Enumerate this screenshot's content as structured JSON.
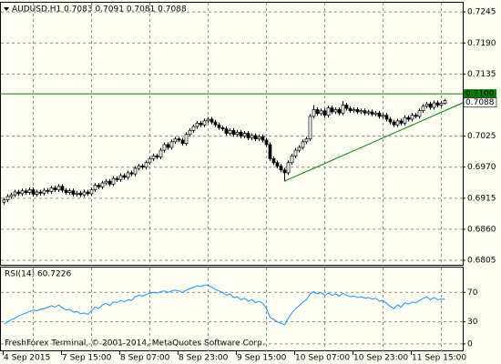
{
  "chart_data": [
    {
      "type": "candlestick",
      "title": "AUDUSD,H1  0.7083 0.7091 0.7081 0.7088",
      "categories": [
        "4 Sep 2015",
        null,
        null,
        null,
        null,
        null,
        null,
        null,
        null,
        null,
        null,
        null,
        null,
        null,
        null,
        null,
        "7 Sep 15:00",
        null,
        null,
        null,
        null,
        null,
        null,
        null,
        null,
        null,
        null,
        null,
        null,
        null,
        null,
        null,
        "8 Sep 07:00",
        null,
        null,
        null,
        null,
        null,
        null,
        null,
        null,
        null,
        null,
        null,
        null,
        null,
        null,
        null,
        "8 Sep 23:00",
        null,
        null,
        null,
        null,
        null,
        null,
        null,
        null,
        null,
        null,
        null,
        null,
        null,
        null,
        null,
        "9 Sep 15:00",
        null,
        null,
        null,
        null,
        null,
        null,
        null,
        null,
        null,
        null,
        null,
        null,
        null,
        null,
        null,
        "10 Sep 07:00",
        null,
        null,
        null,
        null,
        null,
        null,
        null,
        null,
        null,
        null,
        null,
        null,
        null,
        null,
        null,
        "10 Sep 23:00",
        null,
        null,
        null,
        null,
        null,
        null,
        null,
        null,
        null,
        null,
        null,
        null,
        null,
        null,
        null,
        "11 Sep 15:00",
        null,
        null,
        null,
        null,
        null,
        null,
        null,
        null,
        null
      ],
      "open": [
        0.6908,
        0.6912,
        0.6918,
        0.6921,
        0.6926,
        0.6923,
        0.6928,
        0.6925,
        0.693,
        0.6922,
        0.6926,
        0.6924,
        0.6929,
        0.6927,
        0.6933,
        0.693,
        0.6936,
        0.6929,
        0.6925,
        0.6928,
        0.6922,
        0.6924,
        0.6921,
        0.6926,
        0.6923,
        0.693,
        0.6938,
        0.6935,
        0.6942,
        0.6945,
        0.694,
        0.695,
        0.6948,
        0.6955,
        0.6952,
        0.696,
        0.6958,
        0.6968,
        0.6972,
        0.697,
        0.6978,
        0.6985,
        0.699,
        0.6988,
        0.7,
        0.701,
        0.7005,
        0.7015,
        0.702,
        0.7018,
        0.7012,
        0.7028,
        0.7035,
        0.7042,
        0.7048,
        0.7045,
        0.7052,
        0.7055,
        0.705,
        0.7045,
        0.704,
        0.7038,
        0.703,
        0.7035,
        0.7028,
        0.7032,
        0.7025,
        0.703,
        0.7022,
        0.7026,
        0.702,
        0.7024,
        0.7018,
        0.701,
        0.6985,
        0.6978,
        0.6972,
        0.6965,
        0.696,
        0.6978,
        0.699,
        0.7,
        0.7005,
        0.7015,
        0.702,
        0.706,
        0.7072,
        0.7065,
        0.707,
        0.7062,
        0.7075,
        0.7068,
        0.7072,
        0.7066,
        0.708,
        0.7074,
        0.707,
        0.7072,
        0.7068,
        0.707,
        0.7066,
        0.7068,
        0.7064,
        0.7066,
        0.706,
        0.7062,
        0.7055,
        0.705,
        0.7045,
        0.7052,
        0.7048,
        0.7058,
        0.7055,
        0.7062,
        0.706,
        0.707,
        0.7078,
        0.7082,
        0.7076,
        0.7084,
        0.708,
        0.7083
      ],
      "high": [
        0.6916,
        0.6922,
        0.6925,
        0.693,
        0.693,
        0.6932,
        0.6932,
        0.6934,
        0.6934,
        0.693,
        0.693,
        0.6933,
        0.6933,
        0.6937,
        0.6937,
        0.694,
        0.694,
        0.6933,
        0.6932,
        0.6932,
        0.6928,
        0.6928,
        0.693,
        0.693,
        0.6934,
        0.6942,
        0.6942,
        0.6946,
        0.6949,
        0.6949,
        0.6954,
        0.6954,
        0.6959,
        0.6959,
        0.6964,
        0.6964,
        0.6972,
        0.6976,
        0.6976,
        0.6982,
        0.6989,
        0.6994,
        0.6994,
        0.7004,
        0.7014,
        0.7014,
        0.7019,
        0.7024,
        0.7024,
        0.7022,
        0.7032,
        0.7039,
        0.7046,
        0.7052,
        0.7052,
        0.7056,
        0.7059,
        0.7059,
        0.7054,
        0.7049,
        0.7044,
        0.7042,
        0.7039,
        0.7039,
        0.7036,
        0.7036,
        0.7034,
        0.7034,
        0.703,
        0.703,
        0.7028,
        0.7028,
        0.7022,
        0.7014,
        0.6989,
        0.6982,
        0.6976,
        0.6969,
        0.6982,
        0.6994,
        0.7004,
        0.7009,
        0.7019,
        0.7024,
        0.7064,
        0.708,
        0.7076,
        0.7074,
        0.7074,
        0.7079,
        0.7079,
        0.7076,
        0.7076,
        0.7087,
        0.7084,
        0.7078,
        0.7076,
        0.7076,
        0.7074,
        0.7074,
        0.7072,
        0.7072,
        0.707,
        0.707,
        0.7066,
        0.7066,
        0.7059,
        0.7054,
        0.7056,
        0.7056,
        0.7062,
        0.7062,
        0.7066,
        0.7066,
        0.7074,
        0.7082,
        0.7086,
        0.7086,
        0.7088,
        0.7088,
        0.7087,
        0.7091
      ],
      "low": [
        0.6904,
        0.6908,
        0.6914,
        0.6917,
        0.6919,
        0.6919,
        0.6921,
        0.6921,
        0.6918,
        0.6918,
        0.692,
        0.692,
        0.6923,
        0.6923,
        0.6926,
        0.6926,
        0.6925,
        0.6921,
        0.6921,
        0.6918,
        0.6918,
        0.6917,
        0.6917,
        0.6919,
        0.6919,
        0.6926,
        0.6931,
        0.6931,
        0.6938,
        0.6936,
        0.6936,
        0.6944,
        0.6944,
        0.6948,
        0.6948,
        0.6954,
        0.6954,
        0.6964,
        0.6966,
        0.6966,
        0.6974,
        0.6981,
        0.6984,
        0.6984,
        0.6996,
        0.7001,
        0.7001,
        0.7011,
        0.7014,
        0.7008,
        0.7008,
        0.7024,
        0.7031,
        0.7038,
        0.7041,
        0.7041,
        0.7048,
        0.7046,
        0.7041,
        0.7036,
        0.7034,
        0.7026,
        0.7026,
        0.7024,
        0.7024,
        0.7021,
        0.7021,
        0.7018,
        0.7018,
        0.7016,
        0.7016,
        0.7014,
        0.7006,
        0.6981,
        0.6974,
        0.6968,
        0.6961,
        0.6945,
        0.6956,
        0.6974,
        0.6986,
        0.6996,
        0.7001,
        0.7011,
        0.7016,
        0.7056,
        0.7061,
        0.7061,
        0.7058,
        0.7058,
        0.7064,
        0.7064,
        0.7062,
        0.7062,
        0.707,
        0.7066,
        0.7066,
        0.7064,
        0.7064,
        0.7062,
        0.7062,
        0.706,
        0.706,
        0.7056,
        0.7056,
        0.7051,
        0.7046,
        0.7041,
        0.7041,
        0.7044,
        0.7044,
        0.7051,
        0.7051,
        0.7056,
        0.7056,
        0.7066,
        0.7074,
        0.7072,
        0.7072,
        0.7076,
        0.7076,
        0.7081
      ],
      "close": [
        0.6912,
        0.6918,
        0.6921,
        0.6926,
        0.6923,
        0.6928,
        0.6925,
        0.693,
        0.6922,
        0.6926,
        0.6924,
        0.6929,
        0.6927,
        0.6933,
        0.693,
        0.6936,
        0.6929,
        0.6925,
        0.6928,
        0.6922,
        0.6924,
        0.6921,
        0.6926,
        0.6923,
        0.693,
        0.6938,
        0.6935,
        0.6942,
        0.6945,
        0.694,
        0.695,
        0.6948,
        0.6955,
        0.6952,
        0.696,
        0.6958,
        0.6968,
        0.6972,
        0.697,
        0.6978,
        0.6985,
        0.699,
        0.6988,
        0.7,
        0.701,
        0.7005,
        0.7015,
        0.702,
        0.7018,
        0.7012,
        0.7028,
        0.7035,
        0.7042,
        0.7048,
        0.7045,
        0.7052,
        0.7055,
        0.705,
        0.7045,
        0.704,
        0.7038,
        0.703,
        0.7035,
        0.7028,
        0.7032,
        0.7025,
        0.703,
        0.7022,
        0.7026,
        0.702,
        0.7024,
        0.7018,
        0.701,
        0.6985,
        0.6978,
        0.6972,
        0.6965,
        0.696,
        0.6978,
        0.699,
        0.7,
        0.7005,
        0.7015,
        0.702,
        0.706,
        0.7072,
        0.7065,
        0.707,
        0.7062,
        0.7075,
        0.7068,
        0.7072,
        0.7066,
        0.708,
        0.7074,
        0.707,
        0.7072,
        0.7068,
        0.707,
        0.7066,
        0.7068,
        0.7064,
        0.7066,
        0.706,
        0.7062,
        0.7055,
        0.705,
        0.7045,
        0.7052,
        0.7048,
        0.7058,
        0.7055,
        0.7062,
        0.706,
        0.707,
        0.7078,
        0.7082,
        0.7076,
        0.7084,
        0.708,
        0.7083,
        0.7088
      ],
      "color": "#000000",
      "up_color": "#ffffff",
      "down_color": "#000000",
      "ylim": [
        0.6797,
        0.7263
      ],
      "yticks": [
        0.7245,
        {
          "value": 0.719,
          "label": "0.7190"
        },
        0.7135,
        0.7025,
        {
          "value": 0.697,
          "label": "0.6970"
        },
        0.6915,
        {
          "value": 0.686,
          "label": "0.6860"
        },
        0.6805
      ],
      "grid": true,
      "hline": {
        "value": 0.71,
        "label": "0.7100",
        "color": "#008000"
      },
      "current_price": {
        "value": 0.7088,
        "label": "0.7088"
      },
      "trendline": {
        "from": [
          77,
          0.6945
        ],
        "to": [
          126,
          0.7084
        ],
        "color": "#008000"
      }
    },
    {
      "type": "line",
      "title": "RSI(14) 60.7226",
      "color": "#1e90ff",
      "values": [
        27,
        30,
        33,
        35,
        38,
        40,
        42,
        44,
        46,
        45,
        47,
        48,
        50,
        52,
        50,
        53,
        49,
        46,
        47,
        43,
        44,
        41,
        42,
        40,
        45,
        50,
        48,
        53,
        55,
        52,
        57,
        56,
        59,
        57,
        60,
        59,
        64,
        66,
        65,
        67,
        69,
        70,
        69,
        71,
        72,
        70,
        72,
        73,
        72,
        70,
        73,
        75,
        77,
        79,
        78,
        80,
        80,
        77,
        74,
        72,
        70,
        66,
        68,
        63,
        64,
        60,
        62,
        58,
        60,
        56,
        58,
        55,
        48,
        36,
        33,
        30,
        28,
        26,
        35,
        42,
        48,
        52,
        57,
        60,
        68,
        71,
        68,
        70,
        66,
        69,
        66,
        68,
        65,
        69,
        66,
        64,
        65,
        63,
        64,
        62,
        63,
        61,
        62,
        58,
        59,
        55,
        51,
        48,
        53,
        50,
        56,
        54,
        57,
        56,
        59,
        62,
        64,
        60,
        63,
        60,
        61,
        60.7226
      ],
      "ylim": [
        -10,
        105
      ],
      "yticks": [
        70,
        30,
        0
      ],
      "grid": true
    }
  ],
  "footer": "FreshForex Terminal, © 2001-2014, MetaQuotes Software Corp."
}
